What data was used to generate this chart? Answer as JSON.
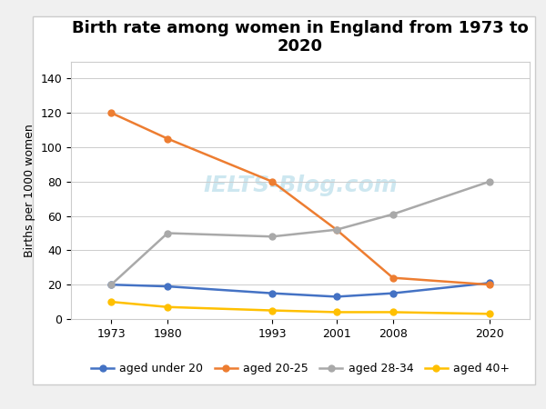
{
  "title": "Birth rate among women in England from 1973 to\n2020",
  "ylabel": "Births per 1000 women",
  "years": [
    1973,
    1980,
    1993,
    2001,
    2008,
    2020
  ],
  "series": [
    {
      "label": "aged under 20",
      "color": "#4472C4",
      "marker": "o",
      "values": [
        20,
        19,
        15,
        13,
        15,
        21
      ]
    },
    {
      "label": "aged 20-25",
      "color": "#ED7D31",
      "marker": "o",
      "values": [
        120,
        105,
        80,
        52,
        24,
        20
      ]
    },
    {
      "label": "aged 28-34",
      "color": "#A9A9A9",
      "marker": "o",
      "values": [
        20,
        50,
        48,
        52,
        61,
        80
      ]
    },
    {
      "label": "aged 40+",
      "color": "#FFC000",
      "marker": "o",
      "values": [
        10,
        7,
        5,
        4,
        4,
        3
      ]
    }
  ],
  "ylim": [
    0,
    150
  ],
  "yticks": [
    0,
    20,
    40,
    60,
    80,
    100,
    120,
    140
  ],
  "background_color": "#FFFFFF",
  "outer_background": "#F0F0F0",
  "watermark_text": "IELTS-Blog.com",
  "watermark_color": "#ADD8E6",
  "watermark_alpha": 0.6,
  "title_fontsize": 13,
  "axis_label_fontsize": 9,
  "legend_fontsize": 9,
  "tick_fontsize": 9,
  "linewidth": 1.8,
  "markersize": 5
}
